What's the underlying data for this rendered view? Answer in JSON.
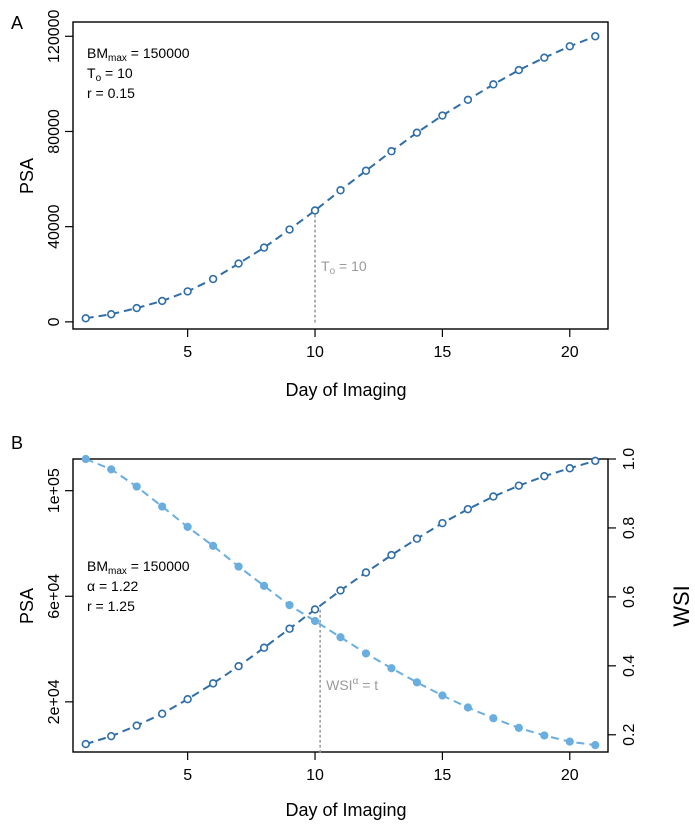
{
  "colors": {
    "psa_line": "#2f6ea8",
    "psa_marker": "#2f6ea8",
    "wsi_line": "#6aaee0",
    "wsi_marker": "#6aaee0",
    "reference_line": "#999999",
    "axis": "#000000"
  },
  "chart_data": [
    {
      "panel": "A",
      "type": "line",
      "xlabel": "Day of Imaging",
      "ylabel": "PSA",
      "xlim": [
        0.5,
        21.5
      ],
      "ylim": [
        -3000,
        126000
      ],
      "xticks": [
        5,
        10,
        15,
        20
      ],
      "yticks": [
        0,
        40000,
        80000,
        120000
      ],
      "x": [
        1,
        2,
        3,
        4,
        5,
        6,
        7,
        8,
        9,
        10,
        11,
        12,
        13,
        14,
        15,
        16,
        17,
        18,
        19,
        20,
        21
      ],
      "series": [
        {
          "values": [
            1500,
            3200,
            5800,
            8800,
            12800,
            18000,
            24500,
            31200,
            38800,
            46800,
            55300,
            63500,
            71700,
            79500,
            86700,
            93300,
            99800,
            105800,
            111000,
            115800,
            120000
          ],
          "line_style": "dashed",
          "marker": "open-circle"
        }
      ],
      "reference_line": {
        "x": 10,
        "from_y": 0,
        "to_y": 46800,
        "style": "dotted",
        "label_base": "T",
        "label_sub": "o",
        "label_rest": " = 10"
      },
      "annotation": [
        {
          "base": "BM",
          "sub": "max",
          "rest": " = 150000"
        },
        {
          "base": "T",
          "sub": "o",
          "rest": " = 10"
        },
        {
          "base": "r = 0.15",
          "sub": "",
          "rest": ""
        }
      ],
      "grid": false
    },
    {
      "panel": "B",
      "type": "line",
      "xlabel": "Day of Imaging",
      "ylabel": "PSA",
      "ylabel_right": "WSI",
      "xlim": [
        0.5,
        21.5
      ],
      "ylim": [
        1000,
        112000
      ],
      "ylim_right": [
        0.15,
        1.0
      ],
      "xticks": [
        5,
        10,
        15,
        20
      ],
      "yticks": [
        20000,
        60000,
        100000
      ],
      "ytick_labels": [
        "2e+04",
        "6e+04",
        "1e+05"
      ],
      "yticks_right": [
        0.2,
        0.4,
        0.6,
        0.8,
        1.0
      ],
      "ytick_labels_right": [
        "0.2",
        "0.4",
        "0.6",
        "0.8",
        "1.0"
      ],
      "x": [
        1,
        2,
        3,
        4,
        5,
        6,
        7,
        8,
        9,
        10,
        11,
        12,
        13,
        14,
        15,
        16,
        17,
        18,
        19,
        20,
        21
      ],
      "series": [
        {
          "axis": "left",
          "values": [
            4000,
            7000,
            11000,
            15500,
            21000,
            27000,
            33500,
            40500,
            47700,
            55000,
            62200,
            69000,
            75600,
            81800,
            87700,
            93000,
            97800,
            101900,
            105500,
            108500,
            111300
          ],
          "line_style": "dashed",
          "marker": "open-circle"
        },
        {
          "axis": "right",
          "values": [
            1.0,
            0.97,
            0.92,
            0.862,
            0.803,
            0.748,
            0.688,
            0.632,
            0.576,
            0.53,
            0.483,
            0.436,
            0.393,
            0.352,
            0.314,
            0.279,
            0.248,
            0.22,
            0.198,
            0.18,
            0.17
          ],
          "line_style": "dashed",
          "marker": "filled-circle"
        }
      ],
      "reference_line": {
        "x": 10.2,
        "from_y": 1000,
        "to_y": 55000,
        "style": "dotted",
        "label_base": "WSI",
        "label_sup": "α",
        "label_rest": " = t"
      },
      "annotation": [
        {
          "base": "BM",
          "sub": "max",
          "rest": " = 150000"
        },
        {
          "base": "α = 1.22",
          "sub": "",
          "rest": ""
        },
        {
          "base": "r = 1.25",
          "sub": "",
          "rest": ""
        }
      ],
      "grid": false
    }
  ]
}
